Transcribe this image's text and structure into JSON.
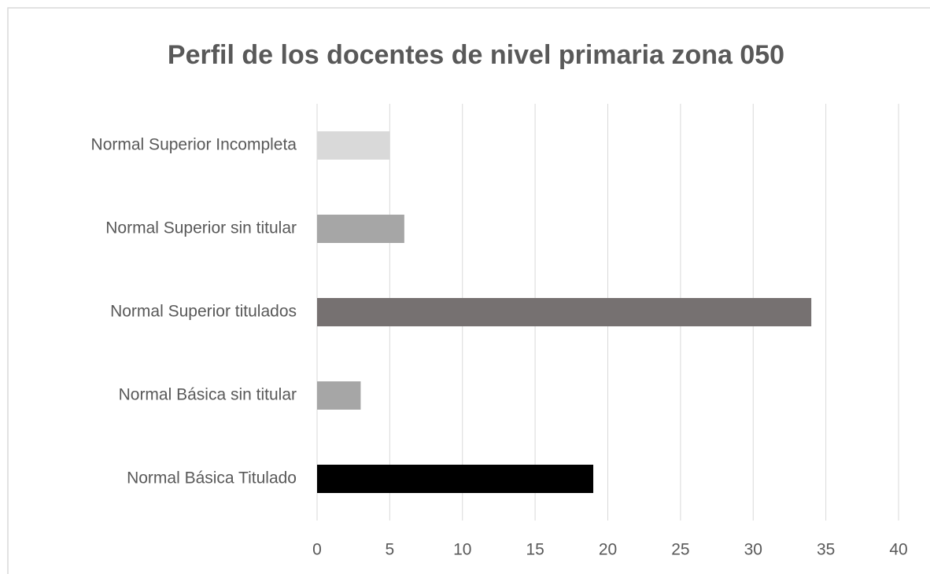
{
  "chart_data": {
    "type": "bar",
    "orientation": "horizontal",
    "title": "Perfil de los docentes de nivel primaria zona  050",
    "categories": [
      "Normal Superior Incompleta",
      "Normal Superior sin titular",
      "Normal Superior titulados",
      "Normal Básica sin titular",
      "Normal Básica Titulado"
    ],
    "values": [
      5,
      6,
      34,
      3,
      19
    ],
    "colors": [
      "#d9d9d9",
      "#a6a6a6",
      "#767171",
      "#a6a6a6",
      "#000000"
    ],
    "xlim": [
      0,
      40
    ],
    "xticks": [
      0,
      5,
      10,
      15,
      20,
      25,
      30,
      35,
      40
    ],
    "grid": true
  }
}
